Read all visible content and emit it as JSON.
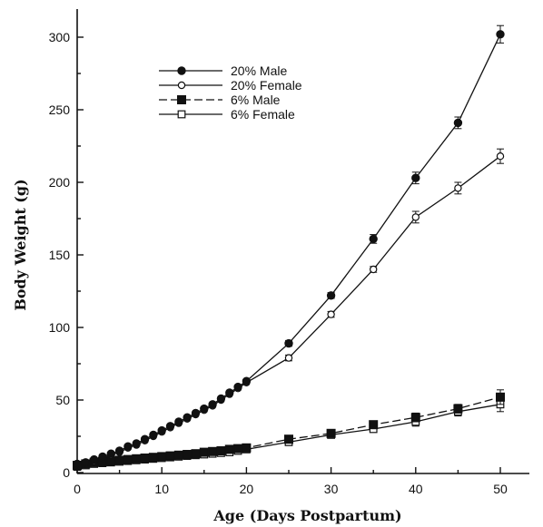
{
  "chart_data": {
    "type": "line",
    "title": "",
    "xlabel": "Age (Days Postpartum)",
    "ylabel": "Body Weight (g)",
    "xlim": [
      0,
      50
    ],
    "ylim": [
      0,
      320
    ],
    "xticks": [
      0,
      10,
      20,
      30,
      40,
      50
    ],
    "yticks": [
      0,
      50,
      100,
      150,
      200,
      250,
      300
    ],
    "grid": false,
    "legend_position": "top-left",
    "series": [
      {
        "name": "20% Male",
        "marker": "filled-circle",
        "line": "solid",
        "x": [
          0,
          1,
          2,
          3,
          4,
          5,
          6,
          7,
          8,
          9,
          10,
          11,
          12,
          13,
          14,
          15,
          16,
          17,
          18,
          19,
          20,
          25,
          30,
          35,
          40,
          45,
          50
        ],
        "y": [
          6,
          7,
          9,
          11,
          13,
          15,
          18,
          20,
          23,
          26,
          29,
          32,
          35,
          38,
          41,
          44,
          47,
          51,
          55,
          59,
          63,
          89,
          122,
          161,
          203,
          241,
          302
        ],
        "err": [
          0,
          0,
          0,
          0,
          0,
          0,
          0,
          0,
          0,
          0,
          0,
          0,
          0,
          0,
          0,
          0,
          0,
          0,
          0,
          0,
          0,
          2,
          2,
          3,
          4,
          4,
          6
        ]
      },
      {
        "name": "20% Female",
        "marker": "open-circle",
        "line": "solid",
        "x": [
          0,
          1,
          2,
          3,
          4,
          5,
          6,
          7,
          8,
          9,
          10,
          11,
          12,
          13,
          14,
          15,
          16,
          17,
          18,
          19,
          20,
          25,
          30,
          35,
          40,
          45,
          50
        ],
        "y": [
          6,
          7,
          8,
          10,
          12,
          14,
          17,
          19,
          22,
          25,
          28,
          31,
          34,
          37,
          40,
          43,
          46,
          50,
          54,
          58,
          62,
          79,
          109,
          140,
          176,
          196,
          218
        ],
        "err": [
          0,
          0,
          0,
          0,
          0,
          0,
          0,
          0,
          0,
          0,
          0,
          0,
          0,
          0,
          0,
          0,
          0,
          0,
          0,
          0,
          0,
          2,
          2,
          2,
          4,
          4,
          5
        ]
      },
      {
        "name": "6% Male",
        "marker": "filled-square",
        "line": "dashed",
        "x": [
          0,
          1,
          2,
          3,
          4,
          5,
          6,
          7,
          8,
          9,
          10,
          11,
          12,
          13,
          14,
          15,
          16,
          17,
          18,
          19,
          20,
          25,
          30,
          35,
          40,
          45,
          50
        ],
        "y": [
          5,
          6,
          7,
          7.5,
          8,
          8.5,
          9,
          9.5,
          10,
          10.5,
          11,
          11.5,
          12,
          12.5,
          13,
          14,
          14.5,
          15,
          16,
          16.5,
          17,
          23,
          27,
          33,
          38,
          44,
          52
        ],
        "err": [
          0,
          0,
          0,
          0,
          0,
          0,
          0,
          0,
          0,
          0,
          0,
          0,
          0,
          0,
          0,
          0,
          0,
          0,
          0,
          0,
          0,
          1,
          1,
          2,
          3,
          3,
          5
        ]
      },
      {
        "name": "6% Female",
        "marker": "open-square",
        "line": "solid",
        "x": [
          0,
          1,
          2,
          3,
          4,
          5,
          6,
          7,
          8,
          9,
          10,
          11,
          12,
          13,
          14,
          15,
          16,
          17,
          18,
          19,
          20,
          25,
          30,
          35,
          40,
          45,
          50
        ],
        "y": [
          4,
          5,
          6,
          6.5,
          7,
          7.5,
          8,
          8.5,
          9,
          9.5,
          10,
          10.5,
          11,
          11.5,
          12,
          12.5,
          13,
          13.5,
          14,
          15,
          16,
          21,
          26,
          30,
          35,
          42,
          47
        ],
        "err": [
          0,
          0,
          0,
          0,
          0,
          0,
          0,
          0,
          0,
          0,
          0,
          0,
          0,
          0,
          0,
          0,
          0,
          0,
          0,
          0,
          0,
          1,
          1,
          2,
          3,
          3,
          5
        ]
      }
    ]
  }
}
